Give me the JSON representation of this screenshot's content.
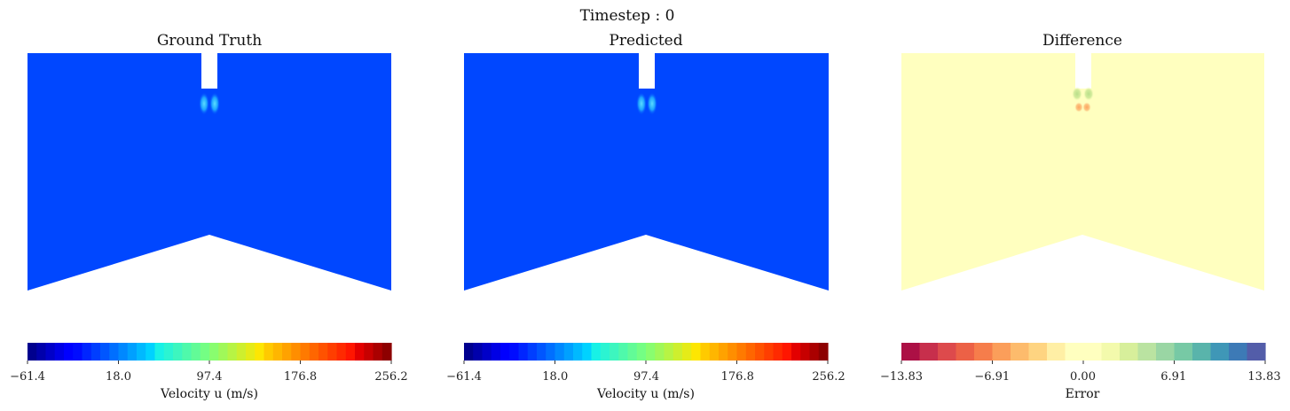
{
  "figure": {
    "suptitle": "Timestep : 0"
  },
  "chart_data": [
    {
      "type": "heatmap",
      "title": "Ground Truth",
      "field": "velocity_u",
      "background_color": "#0047ff",
      "colormap": "jet",
      "colorbar": {
        "label": "Velocity u (m/s)",
        "min": -61.4,
        "max": 256.2,
        "ticks": [
          "−61.4",
          "18.0",
          "97.4",
          "176.8",
          "256.2"
        ],
        "levels": 40
      },
      "features": [
        {
          "kind": "jet-plume",
          "colors": [
            "#3fc0ff",
            "#1aa2ff"
          ],
          "note": "two small lobes below inlet"
        }
      ]
    },
    {
      "type": "heatmap",
      "title": "Predicted",
      "field": "velocity_u",
      "background_color": "#0047ff",
      "colormap": "jet",
      "colorbar": {
        "label": "Velocity u (m/s)",
        "min": -61.4,
        "max": 256.2,
        "ticks": [
          "−61.4",
          "18.0",
          "97.4",
          "176.8",
          "256.2"
        ],
        "levels": 40
      },
      "features": [
        {
          "kind": "jet-plume",
          "colors": [
            "#3fc0ff",
            "#1aa2ff"
          ],
          "note": "two small lobes below inlet"
        }
      ]
    },
    {
      "type": "heatmap",
      "title": "Difference",
      "field": "error",
      "background_color": "#ffffbf",
      "colormap": "spectral",
      "colorbar": {
        "label": "Error",
        "min": -13.83,
        "max": 13.83,
        "ticks": [
          "−13.83",
          "−6.91",
          "0.00",
          "6.91",
          "13.83"
        ],
        "levels": 20
      },
      "features": [
        {
          "kind": "error-spot",
          "colors": [
            "#c9e58f",
            "#fdb367"
          ],
          "note": "green lobes over orange lobes below inlet"
        }
      ]
    }
  ]
}
